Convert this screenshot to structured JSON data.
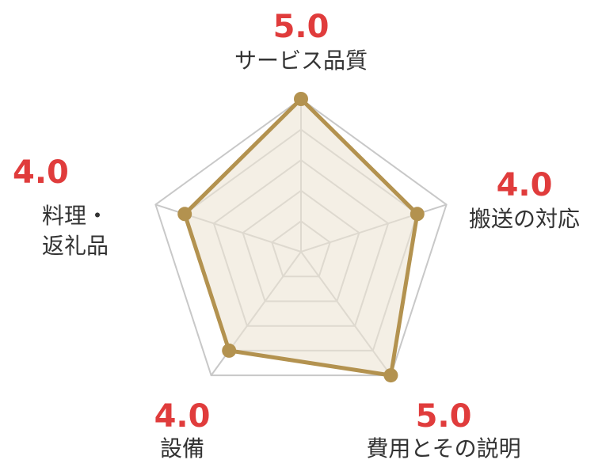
{
  "chart_data": {
    "type": "radar",
    "max": 5,
    "levels": 5,
    "axes": [
      {
        "key": "service",
        "score_label": "5.0",
        "label_lines": [
          "サービス品質"
        ],
        "value": 5
      },
      {
        "key": "transport",
        "score_label": "4.0",
        "label_lines": [
          "搬送の対応"
        ],
        "value": 4
      },
      {
        "key": "cost",
        "score_label": "5.0",
        "label_lines": [
          "費用とその説明"
        ],
        "value": 5
      },
      {
        "key": "equipment",
        "score_label": "4.0",
        "label_lines": [
          "設備"
        ],
        "value": 4
      },
      {
        "key": "food",
        "score_label": "4.0",
        "label_lines": [
          "料理・",
          "返礼品"
        ],
        "value": 4
      }
    ],
    "colors": {
      "grid": "#c8c8c8",
      "series_line": "#b3924f",
      "series_fill": "#ede4d3",
      "score": "#e03c3c",
      "label": "#333333"
    }
  }
}
